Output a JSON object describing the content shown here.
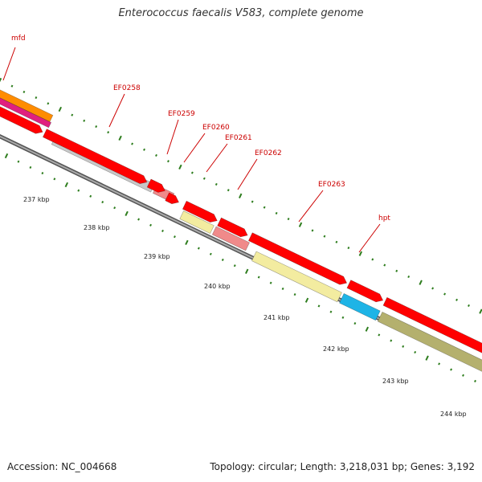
{
  "title": "Enterococcus faecalis V583, complete genome",
  "footer": {
    "accession": "Accession: NC_004668",
    "topology": "Topology: circular; Length: 3,218,031 bp; Genes: 3,192"
  },
  "colors": {
    "cds_red": "#ff0000",
    "label_red": "#cc0000",
    "tick_green": "#2e7d1e",
    "backbone_gray": "#888888",
    "gene_gray": "#c8c8c8",
    "gene_pink": "#f08a8a",
    "gene_khaki": "#f3eca0",
    "gene_cyan": "#1eb4e6",
    "gene_olive": "#b4b06e",
    "gene_orange": "#ff8c00",
    "gene_magenta": "#e0207f"
  },
  "gene_labels": [
    {
      "id": "mfd",
      "text": "mfd"
    },
    {
      "id": "EF0258",
      "text": "EF0258"
    },
    {
      "id": "EF0259",
      "text": "EF0259"
    },
    {
      "id": "EF0260",
      "text": "EF0260"
    },
    {
      "id": "EF0261",
      "text": "EF0261"
    },
    {
      "id": "EF0262",
      "text": "EF0262"
    },
    {
      "id": "EF0263",
      "text": "EF0263"
    },
    {
      "id": "hpt",
      "text": "hpt"
    }
  ],
  "kbp_labels": [
    "237 kbp",
    "238 kbp",
    "239 kbp",
    "240 kbp",
    "241 kbp",
    "242 kbp",
    "243 kbp",
    "244 kbp"
  ]
}
